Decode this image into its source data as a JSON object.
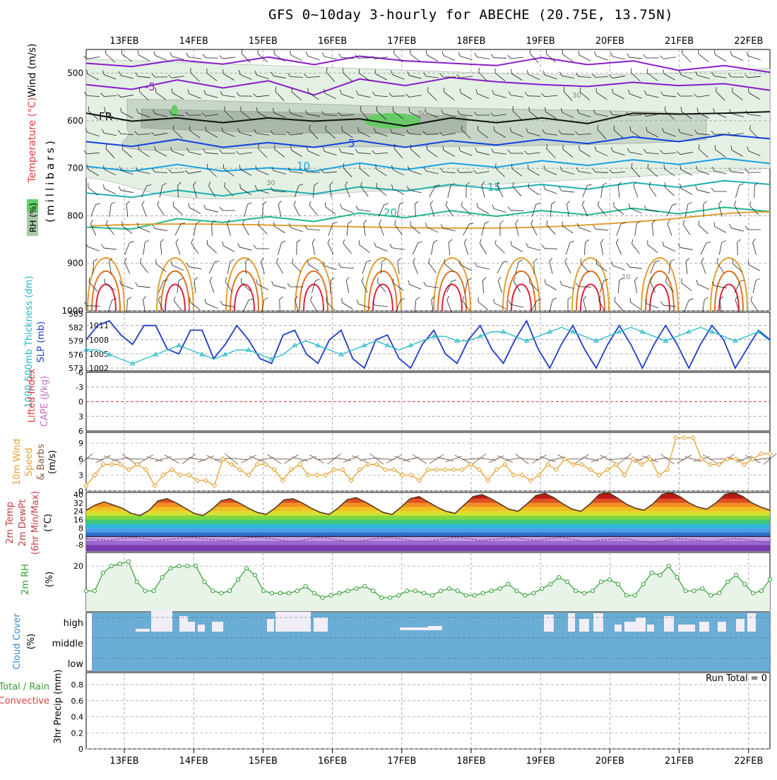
{
  "title": "GFS 0~10day 3-hourly for ABECHE (20.75E, 13.75N)",
  "dates": [
    "13FEB",
    "14FEB",
    "15FEB",
    "16FEB",
    "17FEB",
    "18FEB",
    "19FEB",
    "20FEB",
    "21FEB",
    "22FEB"
  ],
  "chart_data": [
    {
      "type": "heatmap",
      "name": "vertical-profile",
      "ylabel_left": "(millibars)",
      "ylabel_legend": [
        "Wind (m/s)",
        "Temperature (°C)",
        "RH (%)"
      ],
      "yticks": [
        500,
        600,
        700,
        800,
        900,
        1000
      ],
      "ylim": [
        450,
        1000
      ],
      "isotherm_labels": [
        "-5",
        "FR",
        "5",
        "10",
        "15",
        "20"
      ],
      "rh_labels": [
        "30",
        "50",
        "10"
      ],
      "isotherms": [
        {
          "label": "-5",
          "color": "#8a1cc8",
          "p": [
            485,
            480,
            478,
            475,
            472,
            476,
            470,
            468,
            485,
            478,
            473,
            476,
            480,
            488,
            490,
            492
          ]
        },
        {
          "label": "-5",
          "color": "#8a1cc8",
          "p": [
            530,
            528,
            520,
            525,
            522,
            540,
            518,
            520,
            515,
            512,
            530,
            522,
            525,
            520,
            528,
            530
          ]
        },
        {
          "label": "FR",
          "color": "#111111",
          "p": [
            590,
            595,
            600,
            598,
            600,
            595,
            602,
            605,
            600,
            598,
            600,
            600,
            590,
            580,
            590,
            575
          ]
        },
        {
          "label": "5",
          "color": "#1040e0",
          "p": [
            650,
            648,
            645,
            650,
            652,
            650,
            648,
            650,
            648,
            645,
            645,
            642,
            640,
            638,
            635,
            632
          ]
        },
        {
          "label": "10",
          "color": "#1aa0e0",
          "p": [
            702,
            700,
            698,
            700,
            705,
            700,
            695,
            697,
            695,
            692,
            690,
            688,
            688,
            686,
            685,
            684
          ]
        },
        {
          "label": "15",
          "color": "#20b0b0",
          "p": [
            758,
            755,
            752,
            752,
            750,
            748,
            745,
            742,
            740,
            738,
            740,
            738,
            736,
            734,
            732,
            728
          ]
        },
        {
          "label": "20",
          "color": "#20b890",
          "p": [
            830,
            822,
            812,
            808,
            808,
            806,
            800,
            798,
            795,
            795,
            795,
            792,
            790,
            790,
            788,
            785
          ]
        }
      ]
    },
    {
      "type": "line",
      "name": "slp-thickness",
      "ylabel": [
        "1000-500mb Thickness (dm)",
        "SLP (mb)"
      ],
      "y_left_ticks": [
        573,
        576,
        579,
        582,
        585
      ],
      "y_right_ticks": [
        1002,
        1005,
        1008,
        1011
      ],
      "series": [
        {
          "name": "SLP (mb)",
          "color": "#1e3cc8",
          "values": [
            1008,
            1011,
            1012,
            1009,
            1007,
            1011,
            1011,
            1006,
            1005,
            1010,
            1010,
            1004,
            1007,
            1011,
            1008,
            1004,
            1003,
            1009,
            1010,
            1005,
            1003,
            1008,
            1010,
            1004,
            1002,
            1008,
            1009,
            1004,
            1002,
            1007,
            1010,
            1005,
            1003,
            1008,
            1011,
            1006,
            1003,
            1008,
            1012,
            1006,
            1002,
            1007,
            1011,
            1006,
            1002,
            1007,
            1011,
            1007,
            1002,
            1007,
            1011,
            1007,
            1002,
            1007,
            1011,
            1008,
            1002,
            1006,
            1010,
            1008
          ]
        },
        {
          "name": "1000-500mb Thickness (dm)",
          "color": "#20b8c8",
          "values": [
            577,
            577,
            576,
            575,
            574,
            575,
            576,
            577,
            578,
            577,
            576,
            575,
            576,
            577,
            577,
            576,
            575,
            576,
            578,
            579,
            578,
            577,
            576,
            577,
            578,
            579,
            578,
            577,
            578,
            579,
            580,
            580,
            579,
            579,
            580,
            581,
            581,
            580,
            579,
            580,
            581,
            582,
            581,
            580,
            579,
            580,
            581,
            582,
            581,
            580,
            579,
            580,
            581,
            582,
            581,
            580,
            579,
            580,
            581,
            579
          ]
        }
      ]
    },
    {
      "type": "line",
      "name": "cape-lifted-index",
      "ylabel": [
        "Lifted Index",
        "CAPE (J/kg)"
      ],
      "yticks": [
        "-6",
        "-3",
        "0",
        "3",
        "6"
      ],
      "ylim": [
        -6,
        6
      ]
    },
    {
      "type": "line",
      "name": "10m-wind",
      "ylabel": [
        "10m Wind",
        "Speed",
        "& Barbs",
        "(m/s)"
      ],
      "yticks": [
        0,
        3,
        6,
        9
      ],
      "ylim": [
        0,
        11
      ],
      "series": [
        {
          "name": "10m Wind Speed",
          "color": "#e8a030",
          "values": [
            1,
            3,
            5,
            5,
            5,
            4,
            5,
            4,
            1,
            3,
            4,
            3,
            3,
            2,
            2,
            1,
            6,
            5,
            4,
            3,
            5,
            5,
            4,
            2,
            4,
            5,
            3,
            3,
            3,
            4,
            4,
            2,
            4,
            5,
            5,
            4,
            4,
            3,
            3,
            2,
            4,
            4,
            4,
            4,
            4,
            5,
            4,
            2,
            4,
            5,
            3,
            3,
            2,
            3,
            5,
            4,
            6,
            5,
            5,
            4,
            3,
            4,
            5,
            3,
            6,
            5,
            6,
            3,
            4,
            10,
            10,
            10,
            6,
            5,
            5,
            6,
            6,
            5,
            6,
            7,
            7
          ]
        }
      ]
    },
    {
      "type": "area",
      "name": "2m-temperature",
      "ylabel": [
        "2m Temp",
        "2m DewPt",
        "(6hr Min/Max)",
        "(°C)"
      ],
      "yticks": [
        -8,
        0,
        8,
        16,
        24,
        32,
        40
      ],
      "ylim": [
        -14,
        42
      ],
      "series": [
        {
          "name": "2m Temp",
          "color": "#5a3a1a",
          "values": [
            25,
            30,
            33,
            30,
            27,
            22,
            20,
            25,
            34,
            36,
            32,
            27,
            22,
            20,
            26,
            34,
            36,
            32,
            27,
            23,
            21,
            27,
            35,
            36,
            32,
            27,
            23,
            21,
            27,
            35,
            37,
            33,
            28,
            23,
            21,
            28,
            36,
            38,
            33,
            28,
            24,
            22,
            30,
            38,
            40,
            36,
            31,
            26,
            24,
            31,
            39,
            41,
            37,
            31,
            26,
            24,
            31,
            40,
            42,
            37,
            31,
            27,
            25,
            31,
            40,
            42,
            38,
            32,
            28,
            26,
            32,
            40,
            42,
            38,
            32,
            28,
            25
          ]
        },
        {
          "name": "2m DewPt",
          "color": "#8a4a8a",
          "values": [
            -2,
            -3,
            -4,
            -2,
            -1,
            -2,
            -4,
            -3,
            -2,
            -1,
            -2,
            -3,
            -4,
            -3,
            -1,
            -1,
            -2,
            -4,
            -5,
            -3,
            -1,
            -2,
            -4,
            -5,
            -4,
            -2,
            -1,
            -2,
            -4,
            -5,
            -4,
            -2,
            -1,
            -2,
            -4,
            -3,
            -2,
            -1,
            -3,
            -4,
            -2,
            -1,
            -3,
            -5,
            -4,
            -3,
            -2,
            -3,
            -5,
            -6,
            -4,
            -2,
            -3,
            -4,
            -5,
            -3,
            -2,
            -3,
            -5,
            -6
          ]
        }
      ]
    },
    {
      "type": "area",
      "name": "2m-rh",
      "ylabel": [
        "2m RH",
        "(%)"
      ],
      "yticks": [
        20
      ],
      "ylim": [
        0,
        26
      ],
      "series": [
        {
          "name": "2m RH",
          "color": "#30a030",
          "values": [
            9,
            9,
            17,
            20,
            21,
            22,
            13,
            9,
            9,
            15,
            19,
            20,
            20,
            20,
            13,
            9,
            8,
            9,
            14,
            19,
            16,
            9,
            8,
            8,
            8,
            9,
            11,
            8,
            6,
            7,
            8,
            9,
            10,
            11,
            9,
            6,
            6,
            7,
            9,
            9,
            8,
            7,
            9,
            10,
            9,
            7,
            7,
            8,
            9,
            10,
            12,
            9,
            7,
            8,
            10,
            12,
            15,
            13,
            9,
            8,
            9,
            13,
            14,
            12,
            7,
            7,
            12,
            17,
            16,
            20,
            15,
            9,
            9,
            10,
            7,
            8,
            13,
            16,
            12,
            8,
            9,
            14
          ]
        }
      ]
    },
    {
      "type": "area",
      "name": "cloud-cover",
      "ylabel": [
        "Cloud Cover",
        "(%)"
      ],
      "ytick_labels": [
        "high",
        "middle",
        "low"
      ]
    },
    {
      "type": "line",
      "name": "precip",
      "ylabel": [
        "Total / Rain",
        "Convective",
        "3hr Precip (mm)"
      ],
      "yticks": [
        0,
        0.2,
        0.4,
        0.6,
        0.8
      ],
      "ylim": [
        0,
        0.95
      ],
      "run_total": "Run Total = 0"
    }
  ],
  "colors": {
    "grid": "#aaaaaa",
    "rh_fill": "#e8f4e8",
    "cloud": "#6aaed6"
  }
}
